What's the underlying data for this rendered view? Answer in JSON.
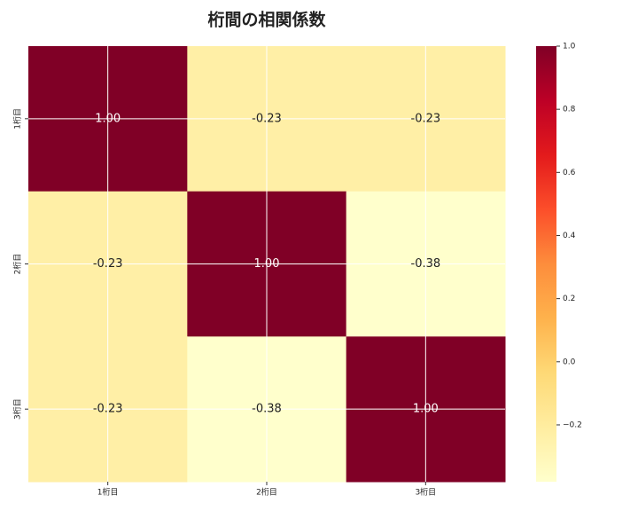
{
  "chart_data": {
    "type": "heatmap",
    "title": "桁間の相関係数",
    "categories": [
      "1桁目",
      "2桁目",
      "3桁目"
    ],
    "y_categories": [
      "1桁目",
      "2桁目",
      "3桁目"
    ],
    "values": [
      [
        1.0,
        -0.23,
        -0.23
      ],
      [
        -0.23,
        1.0,
        -0.38
      ],
      [
        -0.23,
        -0.38,
        1.0
      ]
    ],
    "value_labels": [
      [
        "1.00",
        "-0.23",
        "-0.23"
      ],
      [
        "-0.23",
        "1.00",
        "-0.38"
      ],
      [
        "-0.23",
        "-0.38",
        "1.00"
      ]
    ],
    "colormap": [
      "#ffffcc",
      "#ffeda0",
      "#fed976",
      "#feb24c",
      "#fd8d3c",
      "#fc4e2a",
      "#e31a1c",
      "#bd0026",
      "#800026"
    ],
    "clim": [
      -0.38,
      1.0
    ],
    "cticks": [
      {
        "value": 1.0,
        "label": "1.0"
      },
      0.8,
      0.6,
      0.4,
      0.2,
      {
        "value": 0.0,
        "label": "0.0"
      },
      {
        "value": -0.2,
        "label": "−0.2"
      }
    ],
    "grid": true
  }
}
